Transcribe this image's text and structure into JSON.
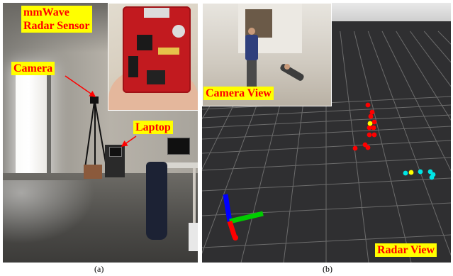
{
  "panel_a": {
    "caption": "(a)",
    "labels": {
      "sensor_line1": "mmWave",
      "sensor_line2": "Radar Sensor",
      "camera": "Camera",
      "laptop": "Laptop"
    }
  },
  "panel_b": {
    "caption": "(b)",
    "labels": {
      "camera_view": "Camera View",
      "radar_view": "Radar View"
    },
    "point_clouds": [
      {
        "name": "person-standing",
        "color": "#ff0000",
        "count": 11
      },
      {
        "name": "person-standing-centroid",
        "color": "#ffff00",
        "count": 1
      },
      {
        "name": "person-lying",
        "color": "#00e5e5",
        "count": 5
      },
      {
        "name": "person-lying-centroid",
        "color": "#ffff00",
        "count": 1
      }
    ],
    "axes_colors": {
      "x": "#00cc00",
      "y": "#ff0000",
      "z": "#0000ff"
    }
  },
  "colors": {
    "label_background": "#ffff00",
    "label_text": "#ff0000",
    "arrow": "#ff0000",
    "radar_background": "#2f2f31",
    "grid_lines": "#6c6c6c"
  }
}
